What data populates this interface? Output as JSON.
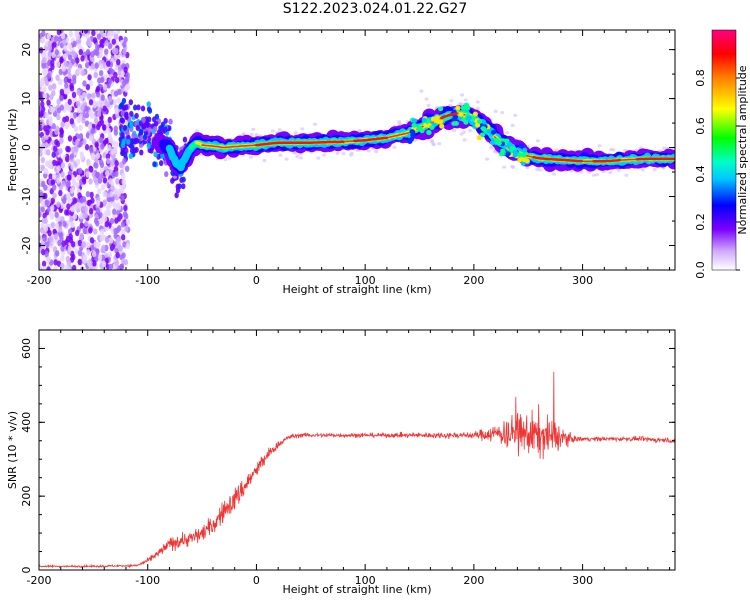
{
  "title": "S122.2023.024.01.22.G27",
  "colors": {
    "snr_line": "#f03535",
    "ridge_core": "#ff2a2a",
    "scatter": "#a066ff"
  },
  "chart_data": [
    {
      "type": "heatmap",
      "xlabel": "Height of straight line (km)",
      "ylabel": "Frequency (Hz)",
      "xlim": [
        -200,
        385
      ],
      "ylim": [
        -25,
        24
      ],
      "x_ticks": [
        "-200",
        "-100",
        "0",
        "100",
        "200",
        "300"
      ],
      "y_ticks": [
        "-20",
        "-10",
        "0",
        "10",
        "20"
      ],
      "colorbar": {
        "label": "Normalized spectral amplitude",
        "range": [
          0,
          1
        ],
        "ticks": [
          "0.0",
          "0.2",
          "0.4",
          "0.6",
          "0.8"
        ],
        "colormap": "rainbow (white-purple-blue-cyan-green-yellow-red-magenta)"
      },
      "ridge": {
        "x": [
          -120,
          -100,
          -90,
          -80,
          -75,
          -70,
          -65,
          -60,
          -55,
          -50,
          -40,
          -30,
          -20,
          0,
          20,
          50,
          80,
          100,
          120,
          140,
          160,
          175,
          185,
          195,
          205,
          215,
          225,
          235,
          245,
          260,
          280,
          300,
          320,
          340,
          360,
          385
        ],
        "y": [
          4,
          3,
          1.5,
          0,
          -3,
          -4,
          -2,
          0,
          1,
          0.5,
          0.3,
          0,
          0.2,
          0.5,
          1,
          1,
          1.2,
          1.5,
          2,
          3,
          5,
          6.5,
          7,
          6.5,
          5,
          3,
          1,
          -0.5,
          -1.5,
          -2.2,
          -2.5,
          -2.8,
          -2.8,
          -2.5,
          -2.3,
          -2.3
        ]
      }
    },
    {
      "type": "line",
      "xlabel": "Height of straight line (km)",
      "ylabel": "SNR (10 * v/v)",
      "xlim": [
        -200,
        385
      ],
      "ylim": [
        0,
        650
      ],
      "x_ticks": [
        "-200",
        "-100",
        "0",
        "100",
        "200",
        "300"
      ],
      "y_ticks": [
        "0",
        "200",
        "400",
        "600"
      ],
      "series": [
        {
          "x": [
            -200,
            -150,
            -110,
            -100,
            -90,
            -80,
            -70,
            -60,
            -50,
            -40,
            -30,
            -20,
            -10,
            0,
            10,
            20,
            30,
            40,
            60,
            100,
            150,
            200,
            220,
            240,
            260,
            280,
            290,
            300,
            350,
            385
          ],
          "y": [
            10,
            10,
            12,
            25,
            45,
            70,
            80,
            85,
            100,
            120,
            160,
            190,
            230,
            270,
            310,
            340,
            360,
            365,
            365,
            365,
            365,
            365,
            370,
            370,
            365,
            360,
            355,
            355,
            355,
            350
          ],
          "noise": [
            4,
            4,
            5,
            10,
            20,
            30,
            35,
            35,
            40,
            45,
            50,
            55,
            50,
            40,
            30,
            15,
            12,
            10,
            10,
            10,
            12,
            15,
            45,
            90,
            110,
            60,
            15,
            10,
            10,
            12
          ]
        }
      ]
    }
  ]
}
